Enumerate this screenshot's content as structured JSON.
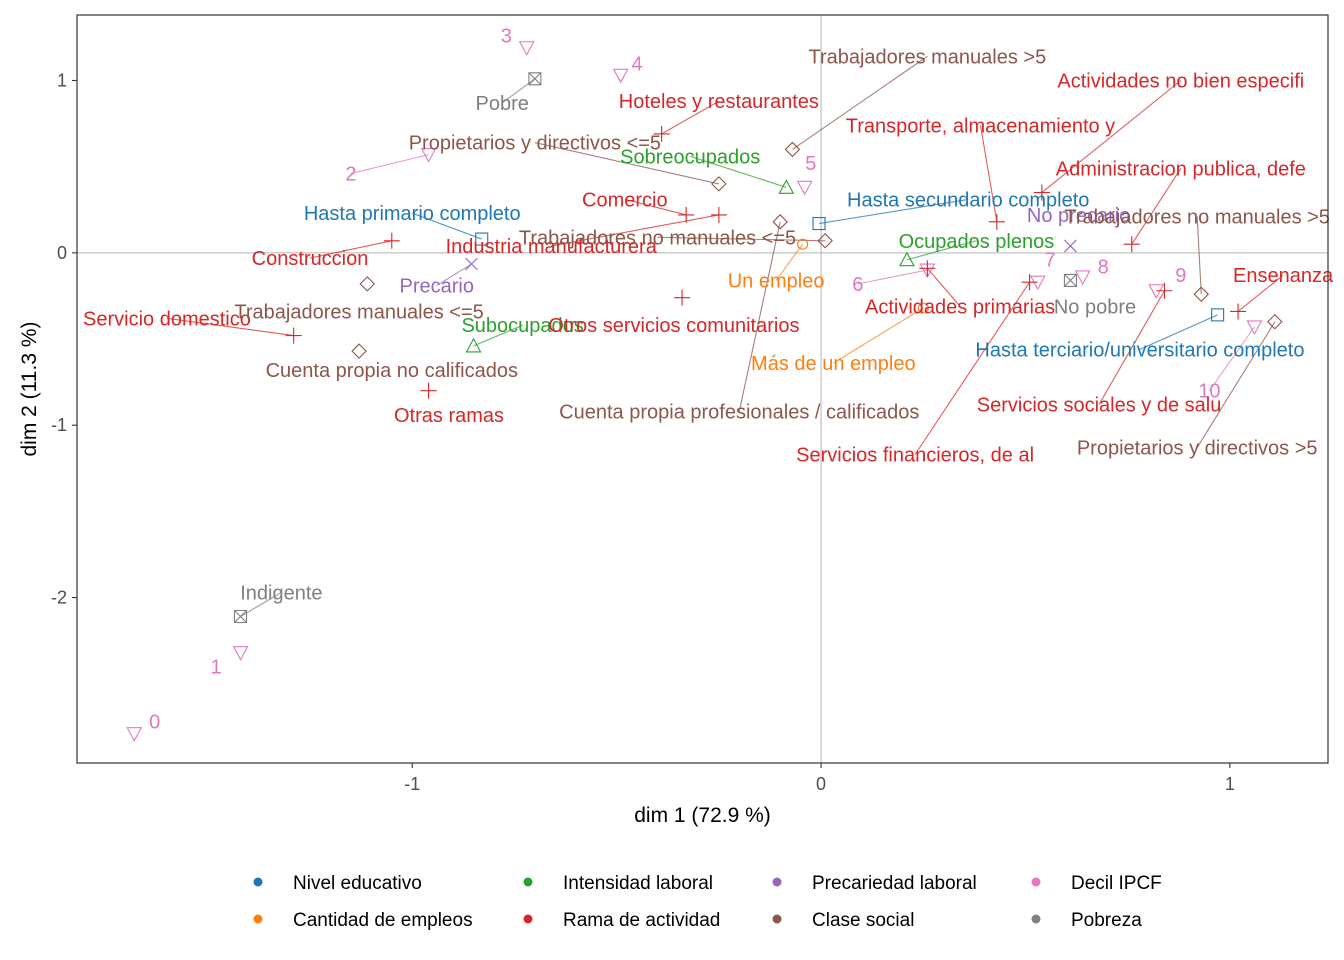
{
  "chart_data": {
    "type": "scatter",
    "xlabel": "dim 1 (72.9 %)",
    "ylabel": "dim 2 (11.3 %)",
    "xlim": [
      -1.82,
      1.24
    ],
    "ylim": [
      -2.96,
      1.38
    ],
    "xticks": [
      -1,
      0,
      1
    ],
    "yticks": [
      -2,
      -1,
      0,
      1
    ],
    "grid": false,
    "zero_lines": true,
    "legend_position": "bottom",
    "groups": [
      {
        "name": "Nivel educativo",
        "color": "#1f77b4",
        "marker": "square"
      },
      {
        "name": "Intensidad laboral",
        "color": "#2ca02c",
        "marker": "triangle-up"
      },
      {
        "name": "Precariedad laboral",
        "color": "#9467bd",
        "marker": "x"
      },
      {
        "name": "Decil IPCF",
        "color": "#e377c2",
        "marker": "triangle-down"
      },
      {
        "name": "Cantidad de empleos",
        "color": "#ff7f0e",
        "marker": "circle"
      },
      {
        "name": "Rama de actividad",
        "color": "#d62728",
        "marker": "plus"
      },
      {
        "name": "Clase social",
        "color": "#8c564b",
        "marker": "diamond"
      },
      {
        "name": "Pobreza",
        "color": "#7f7f7f",
        "marker": "square-x"
      }
    ],
    "legend_order": [
      "Nivel educativo",
      "Cantidad de empleos",
      "Intensidad laboral",
      "Rama de actividad",
      "Precariedad laboral",
      "Clase social",
      "Decil IPCF",
      "Pobreza"
    ],
    "points": [
      {
        "label": "Hasta primario completo",
        "group": "Nivel educativo",
        "x": -0.83,
        "y": 0.08,
        "lx": -1.0,
        "ly": 0.23
      },
      {
        "label": "Hasta secundario completo",
        "group": "Nivel educativo",
        "x": -0.005,
        "y": 0.17,
        "lx": 0.36,
        "ly": 0.31
      },
      {
        "label": "Hasta terciario/universitario completo",
        "group": "Nivel educativo",
        "x": 0.97,
        "y": -0.36,
        "lx": 0.78,
        "ly": -0.56
      },
      {
        "label": "Sobreocupados",
        "group": "Intensidad laboral",
        "x": -0.085,
        "y": 0.38,
        "lx": -0.32,
        "ly": 0.56
      },
      {
        "label": "Ocupados plenos",
        "group": "Intensidad laboral",
        "x": 0.21,
        "y": -0.04,
        "lx": 0.38,
        "ly": 0.07
      },
      {
        "label": "Subocupados",
        "group": "Intensidad laboral",
        "x": -0.85,
        "y": -0.54,
        "lx": -0.73,
        "ly": -0.42
      },
      {
        "label": "Precario",
        "group": "Precariedad laboral",
        "x": -0.855,
        "y": -0.065,
        "lx": -0.94,
        "ly": -0.19
      },
      {
        "label": "No precario",
        "group": "Precariedad laboral",
        "x": 0.61,
        "y": 0.04,
        "lx": 0.63,
        "ly": 0.22
      },
      {
        "label": "0",
        "group": "Decil IPCF",
        "x": -1.68,
        "y": -2.79,
        "lx": -1.63,
        "ly": -2.72
      },
      {
        "label": "1",
        "group": "Decil IPCF",
        "x": -1.42,
        "y": -2.32,
        "lx": -1.48,
        "ly": -2.4
      },
      {
        "label": "2",
        "group": "Decil IPCF",
        "x": -0.96,
        "y": 0.57,
        "lx": -1.15,
        "ly": 0.46
      },
      {
        "label": "3",
        "group": "Decil IPCF",
        "x": -0.72,
        "y": 1.19,
        "lx": -0.77,
        "ly": 1.26
      },
      {
        "label": "4",
        "group": "Decil IPCF",
        "x": -0.49,
        "y": 1.03,
        "lx": -0.45,
        "ly": 1.1
      },
      {
        "label": "5",
        "group": "Decil IPCF",
        "x": -0.04,
        "y": 0.38,
        "lx": -0.025,
        "ly": 0.52
      },
      {
        "label": "6",
        "group": "Decil IPCF",
        "x": 0.26,
        "y": -0.1,
        "lx": 0.09,
        "ly": -0.18
      },
      {
        "label": "7",
        "group": "Decil IPCF",
        "x": 0.53,
        "y": -0.17,
        "lx": 0.56,
        "ly": -0.04
      },
      {
        "label": "8",
        "group": "Decil IPCF",
        "x": 0.64,
        "y": -0.14,
        "lx": 0.69,
        "ly": -0.08
      },
      {
        "label": "9",
        "group": "Decil IPCF",
        "x": 0.82,
        "y": -0.22,
        "lx": 0.88,
        "ly": -0.13
      },
      {
        "label": "10",
        "group": "Decil IPCF",
        "x": 1.06,
        "y": -0.43,
        "lx": 0.95,
        "ly": -0.8
      },
      {
        "label": "Un empleo",
        "group": "Cantidad de empleos",
        "x": -0.045,
        "y": 0.05,
        "lx": -0.11,
        "ly": -0.16
      },
      {
        "label": "Más de un empleo",
        "group": "Cantidad de empleos",
        "x": 0.25,
        "y": -0.32,
        "lx": 0.03,
        "ly": -0.64
      },
      {
        "label": "Hoteles y restaurantes",
        "group": "Rama de actividad",
        "x": -0.39,
        "y": 0.69,
        "lx": -0.25,
        "ly": 0.88
      },
      {
        "label": "Comercio",
        "group": "Rama de actividad",
        "x": -0.33,
        "y": 0.22,
        "lx": -0.48,
        "ly": 0.31
      },
      {
        "label": "Construccion",
        "group": "Rama de actividad",
        "x": -1.05,
        "y": 0.07,
        "lx": -1.25,
        "ly": -0.03
      },
      {
        "label": "Industria manufacturera",
        "group": "Rama de actividad",
        "x": -0.25,
        "y": 0.22,
        "lx": -0.66,
        "ly": 0.04
      },
      {
        "label": "Servicio domestico",
        "group": "Rama de actividad",
        "x": -1.29,
        "y": -0.48,
        "lx": -1.6,
        "ly": -0.38
      },
      {
        "label": "Otras ramas",
        "group": "Rama de actividad",
        "x": -0.96,
        "y": -0.8,
        "lx": -0.91,
        "ly": -0.94
      },
      {
        "label": "Otros servicios comunitarios",
        "group": "Rama de actividad",
        "x": -0.34,
        "y": -0.26,
        "lx": -0.36,
        "ly": -0.42
      },
      {
        "label": "Transporte, almacenamiento y",
        "group": "Rama de actividad",
        "x": 0.43,
        "y": 0.18,
        "lx": 0.39,
        "ly": 0.74
      },
      {
        "label": "Actividades no bien especifi",
        "group": "Rama de actividad",
        "x": 0.54,
        "y": 0.35,
        "lx": 0.88,
        "ly": 1.0
      },
      {
        "label": "Administracion publica, defe",
        "group": "Rama de actividad",
        "x": 0.76,
        "y": 0.05,
        "lx": 0.88,
        "ly": 0.49
      },
      {
        "label": "Actividades primarias",
        "group": "Rama de actividad",
        "x": 0.26,
        "y": -0.09,
        "lx": 0.34,
        "ly": -0.31
      },
      {
        "label": "Ensenanza",
        "group": "Rama de actividad",
        "x": 1.02,
        "y": -0.34,
        "lx": 1.13,
        "ly": -0.13
      },
      {
        "label": "Servicios sociales y de salu",
        "group": "Rama de actividad",
        "x": 0.84,
        "y": -0.22,
        "lx": 0.68,
        "ly": -0.88
      },
      {
        "label": "Servicios financieros, de al",
        "group": "Rama de actividad",
        "x": 0.51,
        "y": -0.17,
        "lx": 0.23,
        "ly": -1.17
      },
      {
        "label": "Trabajadores manuales >5",
        "group": "Clase social",
        "x": -0.07,
        "y": 0.6,
        "lx": 0.26,
        "ly": 1.14
      },
      {
        "label": "Propietarios y directivos <=5",
        "group": "Clase social",
        "x": -0.25,
        "y": 0.4,
        "lx": -0.7,
        "ly": 0.64
      },
      {
        "label": "Trabajadores no manuales <=5",
        "group": "Clase social",
        "x": 0.01,
        "y": 0.07,
        "lx": -0.4,
        "ly": 0.09
      },
      {
        "label": "Trabajadores no manuales >5",
        "group": "Clase social",
        "x": 0.93,
        "y": -0.24,
        "lx": 0.92,
        "ly": 0.21
      },
      {
        "label": "Trabajadores manuales <=5",
        "group": "Clase social",
        "x": -1.11,
        "y": -0.18,
        "lx": -1.13,
        "ly": -0.34
      },
      {
        "label": "Cuenta propia no calificados",
        "group": "Clase social",
        "x": -1.13,
        "y": -0.57,
        "lx": -1.05,
        "ly": -0.68
      },
      {
        "label": "Cuenta propia profesionales / calificados",
        "group": "Clase social",
        "x": -0.1,
        "y": 0.18,
        "lx": -0.2,
        "ly": -0.92
      },
      {
        "label": "Propietarios y directivos >5",
        "group": "Clase social",
        "x": 1.11,
        "y": -0.4,
        "lx": 0.92,
        "ly": -1.13
      },
      {
        "label": "Pobre",
        "group": "Pobreza",
        "x": -0.7,
        "y": 1.01,
        "lx": -0.78,
        "ly": 0.87
      },
      {
        "label": "No pobre",
        "group": "Pobreza",
        "x": 0.61,
        "y": -0.16,
        "lx": 0.67,
        "ly": -0.31
      },
      {
        "label": "Indigente",
        "group": "Pobreza",
        "x": -1.42,
        "y": -2.11,
        "lx": -1.32,
        "ly": -1.97
      }
    ]
  }
}
